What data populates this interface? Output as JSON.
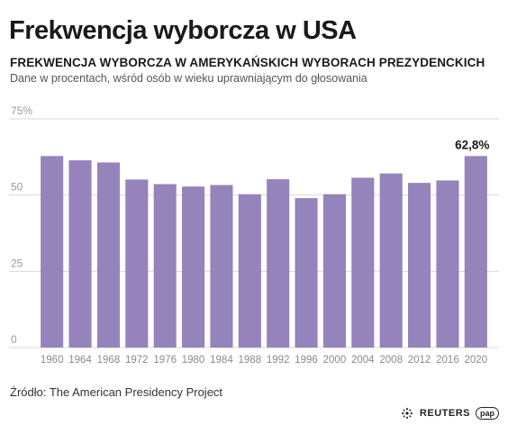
{
  "header": {
    "title": "Frekwencja wyborcza w USA",
    "subtitle": "FREKWENCJA WYBORCZA W AMERYKAŃSKICH WYBORACH PREZYDENCKICH",
    "description": "Dane w procentach, wśród osób w wieku uprawniającym do głosowania"
  },
  "chart_data": {
    "type": "bar",
    "title": "Frekwencja wyborcza w USA",
    "subtitle": "FREKWENCJA WYBORCZA W AMERYKAŃSKICH WYBORACH PREZYDENCKICH",
    "xlabel": "",
    "ylabel": "",
    "ylim": [
      0,
      75
    ],
    "yticks": [
      "0",
      "25",
      "50",
      "75%"
    ],
    "grid": true,
    "bar_color": "#9583bc",
    "grid_color": "#d9d9d9",
    "categories": [
      "1960",
      "1964",
      "1968",
      "1972",
      "1976",
      "1980",
      "1984",
      "1988",
      "1992",
      "1996",
      "2000",
      "2004",
      "2008",
      "2012",
      "2016",
      "2020"
    ],
    "values": [
      62.8,
      61.4,
      60.7,
      55.1,
      53.6,
      52.8,
      53.3,
      50.3,
      55.2,
      49.0,
      50.3,
      55.7,
      57.1,
      54.0,
      54.8,
      62.8
    ],
    "annotations": [
      {
        "category": "2020",
        "text": "62,8%"
      }
    ]
  },
  "footer": {
    "source": "Źródło: The American Presidency Project",
    "logo_reuters": "REUTERS",
    "logo_pap": "pap"
  }
}
